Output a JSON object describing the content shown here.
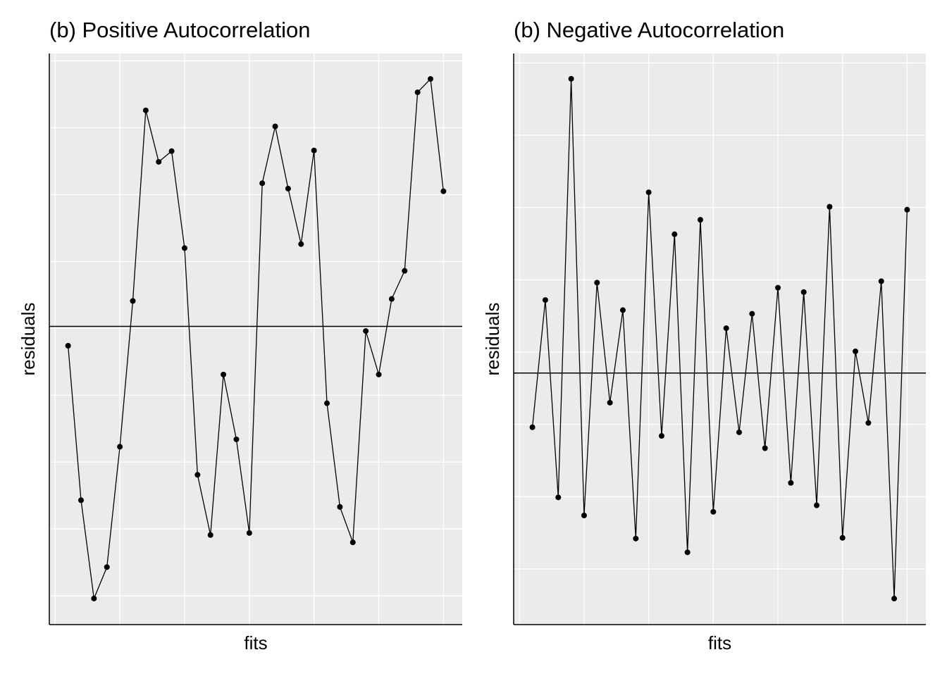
{
  "chart_data": [
    {
      "type": "line",
      "title": "(b) Positive Autocorrelation",
      "xlabel": "fits",
      "ylabel": "residuals",
      "x": [
        1,
        2,
        3,
        4,
        5,
        6,
        7,
        8,
        9,
        10,
        11,
        12,
        13,
        14,
        15,
        16,
        17,
        18,
        19,
        20,
        21,
        22,
        23,
        24,
        25,
        26,
        27,
        28,
        29,
        30
      ],
      "series": [
        {
          "color": "#000000",
          "values": [
            -0.26,
            -2.57,
            -4.04,
            -3.57,
            -1.77,
            0.41,
            3.26,
            2.49,
            2.65,
            1.2,
            -2.19,
            -3.09,
            -0.69,
            -1.66,
            -3.06,
            2.17,
            3.02,
            2.09,
            1.26,
            2.66,
            -1.12,
            -2.67,
            -3.2,
            -0.04,
            -0.69,
            0.44,
            0.86,
            3.53,
            3.73,
            2.05
          ]
        }
      ],
      "xlim": [
        -0.45,
        31.45
      ],
      "ylim": [
        -4.43,
        4.11
      ],
      "xticks": [
        0,
        5,
        10,
        15,
        20,
        25,
        30
      ],
      "yticks": [
        -4,
        -3,
        -2,
        -1,
        0,
        1,
        2,
        3,
        4
      ],
      "hline": 0.03,
      "grid": true,
      "background": "#ebebeb"
    },
    {
      "type": "line",
      "title": "(b) Negative Autocorrelation",
      "xlabel": "fits",
      "ylabel": "residuals",
      "x": [
        1,
        2,
        3,
        4,
        5,
        6,
        7,
        8,
        9,
        10,
        11,
        12,
        13,
        14,
        15,
        16,
        17,
        18,
        19,
        20,
        21,
        22,
        23,
        24,
        25,
        26,
        27,
        28,
        29,
        30
      ],
      "series": [
        {
          "color": "#000000",
          "values": [
            -1.04,
            0.72,
            -2.01,
            3.78,
            -2.26,
            0.96,
            -0.7,
            0.58,
            -2.58,
            2.21,
            -1.16,
            1.63,
            -2.77,
            1.83,
            -2.21,
            0.33,
            -1.11,
            0.53,
            -1.33,
            0.89,
            -1.81,
            0.83,
            -2.12,
            2.01,
            -2.57,
            0.01,
            -0.98,
            0.98,
            -3.41,
            1.97
          ]
        }
      ],
      "xlim": [
        -0.45,
        31.45
      ],
      "ylim": [
        -3.77,
        4.13
      ],
      "xticks": [
        0,
        5,
        10,
        15,
        20,
        25,
        30
      ],
      "yticks": [
        -3,
        -2,
        -1,
        0,
        1,
        2,
        3,
        4
      ],
      "hline": -0.29,
      "grid": true,
      "background": "#ebebeb"
    }
  ]
}
